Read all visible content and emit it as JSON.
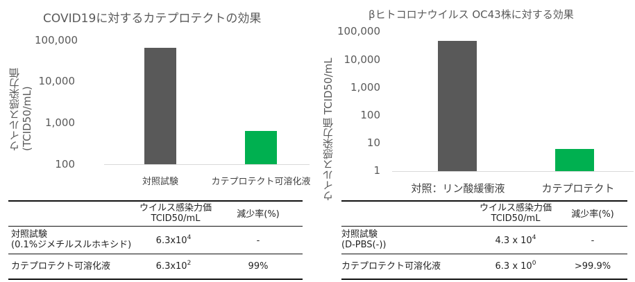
{
  "charts": [
    {
      "title": "COVID19に対するカテプロテクトの効果",
      "ylabel_line1": "ウイルス感染力価",
      "ylabel_line2": "(TCID50/mL)",
      "yticks": [
        "100,000",
        "10,000",
        "1,000",
        "100"
      ],
      "table": {
        "header_col2_line1": "ウイルス感染力価",
        "header_col2_line2": "TCID50/mL",
        "header_col3": "減少率(%)",
        "rows": [
          {
            "label_line1": "対照試験",
            "label_line2": "(0.1%ジメチルスルホキシド)",
            "base": "6.3x10",
            "exp": "4",
            "reduction": "-"
          },
          {
            "label_line1": "カテプロテクト可溶化液",
            "label_line2": "",
            "base": "6.3x10",
            "exp": "2",
            "reduction": "99%"
          }
        ]
      }
    },
    {
      "title": "βヒトコロナウイルス OC43株に対する効果",
      "ylabel_line1": "ウイルス感染力価 TCID50/mL",
      "yticks": [
        "100,000",
        "10,000",
        "1,000",
        "100",
        "10",
        "1"
      ],
      "table": {
        "header_col2_line1": "ウイルス感染力価",
        "header_col2_line2": "TCID50/mL",
        "header_col3": "減少率(%)",
        "rows": [
          {
            "label_line1": "対照試験",
            "label_line2": "(D-PBS(-))",
            "base": "4.3 x 10",
            "exp": "4",
            "reduction": "-"
          },
          {
            "label_line1": "カテプロテクト可溶化液",
            "label_line2": "",
            "base": "6.3 x 10",
            "exp": "0",
            "reduction": ">99.9%"
          }
        ]
      }
    }
  ],
  "chart_data": [
    {
      "type": "bar",
      "title": "COVID19に対するカテプロテクトの効果",
      "ylabel": "ウイルス感染力価 (TCID50/mL)",
      "yscale": "log",
      "ylim": [
        100,
        100000
      ],
      "grid": false,
      "categories": [
        "対照試験",
        "カテプロテクト可溶化液"
      ],
      "values": [
        63000,
        630
      ],
      "colors": [
        "#595959",
        "#00b050"
      ]
    },
    {
      "type": "bar",
      "title": "βヒトコロナウイルス OC43株に対する効果",
      "ylabel": "ウイルス感染力価 TCID50/mL",
      "yscale": "log",
      "ylim": [
        1,
        100000
      ],
      "grid": false,
      "categories": [
        "対照：リン酸緩衝液",
        "カテプロテクト"
      ],
      "values": [
        43000,
        6.3
      ],
      "colors": [
        "#595959",
        "#00b050"
      ]
    }
  ]
}
